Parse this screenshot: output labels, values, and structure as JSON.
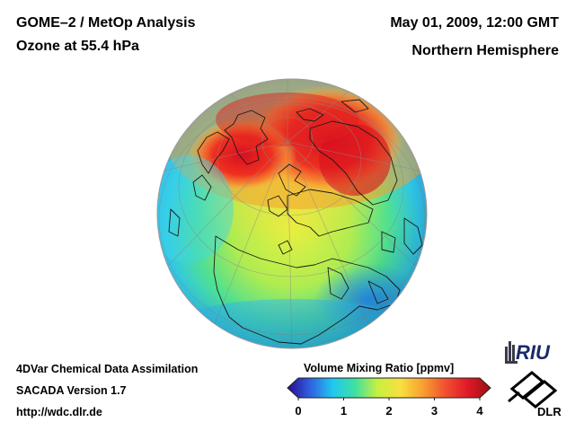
{
  "header": {
    "title_line1": "GOME–2 / MetOp Analysis",
    "title_line2": "Ozone at 55.4 hPa",
    "date": "May 01, 2009, 12:00 GMT",
    "region": "Northern Hemisphere"
  },
  "footer": {
    "method": "4DVar Chemical Data Assimilation",
    "version": "SACADA Version 1.7",
    "url": "http://wdc.dlr.de"
  },
  "colorbar": {
    "title": "Volume Mixing Ratio [ppmv]",
    "ticks": [
      "0",
      "1",
      "2",
      "3",
      "4"
    ],
    "range": [
      0,
      4
    ],
    "colors": [
      "#2a0a8a",
      "#3060e0",
      "#20c8f0",
      "#40e0a0",
      "#c8f040",
      "#f8e040",
      "#f8a030",
      "#f05030",
      "#e01828",
      "#9a1010"
    ]
  },
  "logos": {
    "riu": "RIU",
    "dlr": "DLR"
  }
}
